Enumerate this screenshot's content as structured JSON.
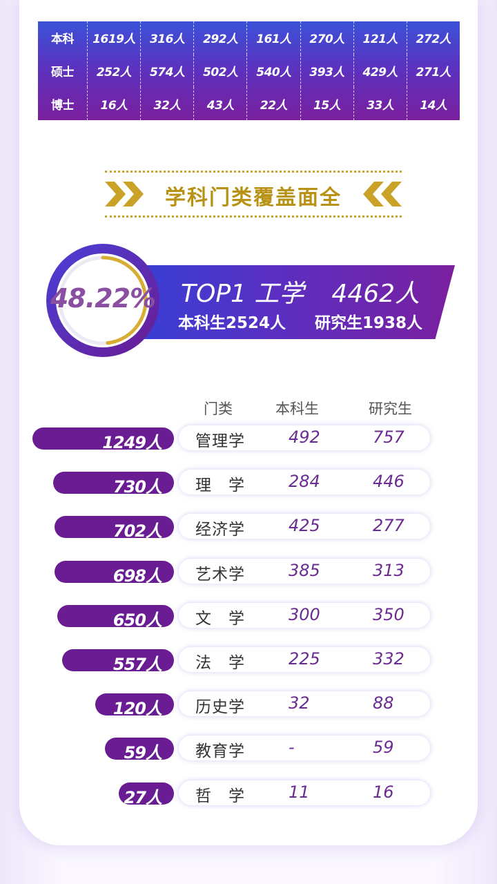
{
  "grade_table": {
    "rows": [
      {
        "label": "本科",
        "values": [
          "1619人",
          "316人",
          "292人",
          "161人",
          "270人",
          "121人",
          "272人"
        ]
      },
      {
        "label": "硕士",
        "values": [
          "252人",
          "574人",
          "502人",
          "540人",
          "393人",
          "429人",
          "271人"
        ]
      },
      {
        "label": "博士",
        "values": [
          "16人",
          "32人",
          "43人",
          "22人",
          "15人",
          "33人",
          "14人"
        ]
      }
    ]
  },
  "section": {
    "title": "学科门类覆盖面全"
  },
  "top1": {
    "percent": "48.22%",
    "percent_value": 48.22,
    "rank": "TOP1",
    "discipline": "工学",
    "total": "4462人",
    "undergrad": "本科生2524人",
    "postgrad": "研究生1938人"
  },
  "colors": {
    "accent_purple": "#6a1c92",
    "gold": "#c9a227",
    "blue": "#3640d6"
  },
  "chart_data": {
    "type": "bar",
    "orientation": "horizontal",
    "headers": {
      "category": "门类",
      "undergrad": "本科生",
      "postgrad": "研究生"
    },
    "rows": [
      {
        "total_label": "1249人",
        "total": 1249,
        "category": "管理学",
        "undergrad": "492",
        "postgrad": "757"
      },
      {
        "total_label": "730人",
        "total": 730,
        "category": "理　学",
        "undergrad": "284",
        "postgrad": "446"
      },
      {
        "total_label": "702人",
        "total": 702,
        "category": "经济学",
        "undergrad": "425",
        "postgrad": "277"
      },
      {
        "total_label": "698人",
        "total": 698,
        "category": "艺术学",
        "undergrad": "385",
        "postgrad": "313"
      },
      {
        "total_label": "650人",
        "total": 650,
        "category": "文　学",
        "undergrad": "300",
        "postgrad": "350"
      },
      {
        "total_label": "557人",
        "total": 557,
        "category": "法　学",
        "undergrad": "225",
        "postgrad": "332"
      },
      {
        "total_label": "120人",
        "total": 120,
        "category": "历史学",
        "undergrad": "32",
        "postgrad": "88"
      },
      {
        "total_label": "59人",
        "total": 59,
        "category": "教育学",
        "undergrad": "-",
        "postgrad": "59"
      },
      {
        "total_label": "27人",
        "total": 27,
        "category": "哲　学",
        "undergrad": "11",
        "postgrad": "16"
      }
    ]
  }
}
